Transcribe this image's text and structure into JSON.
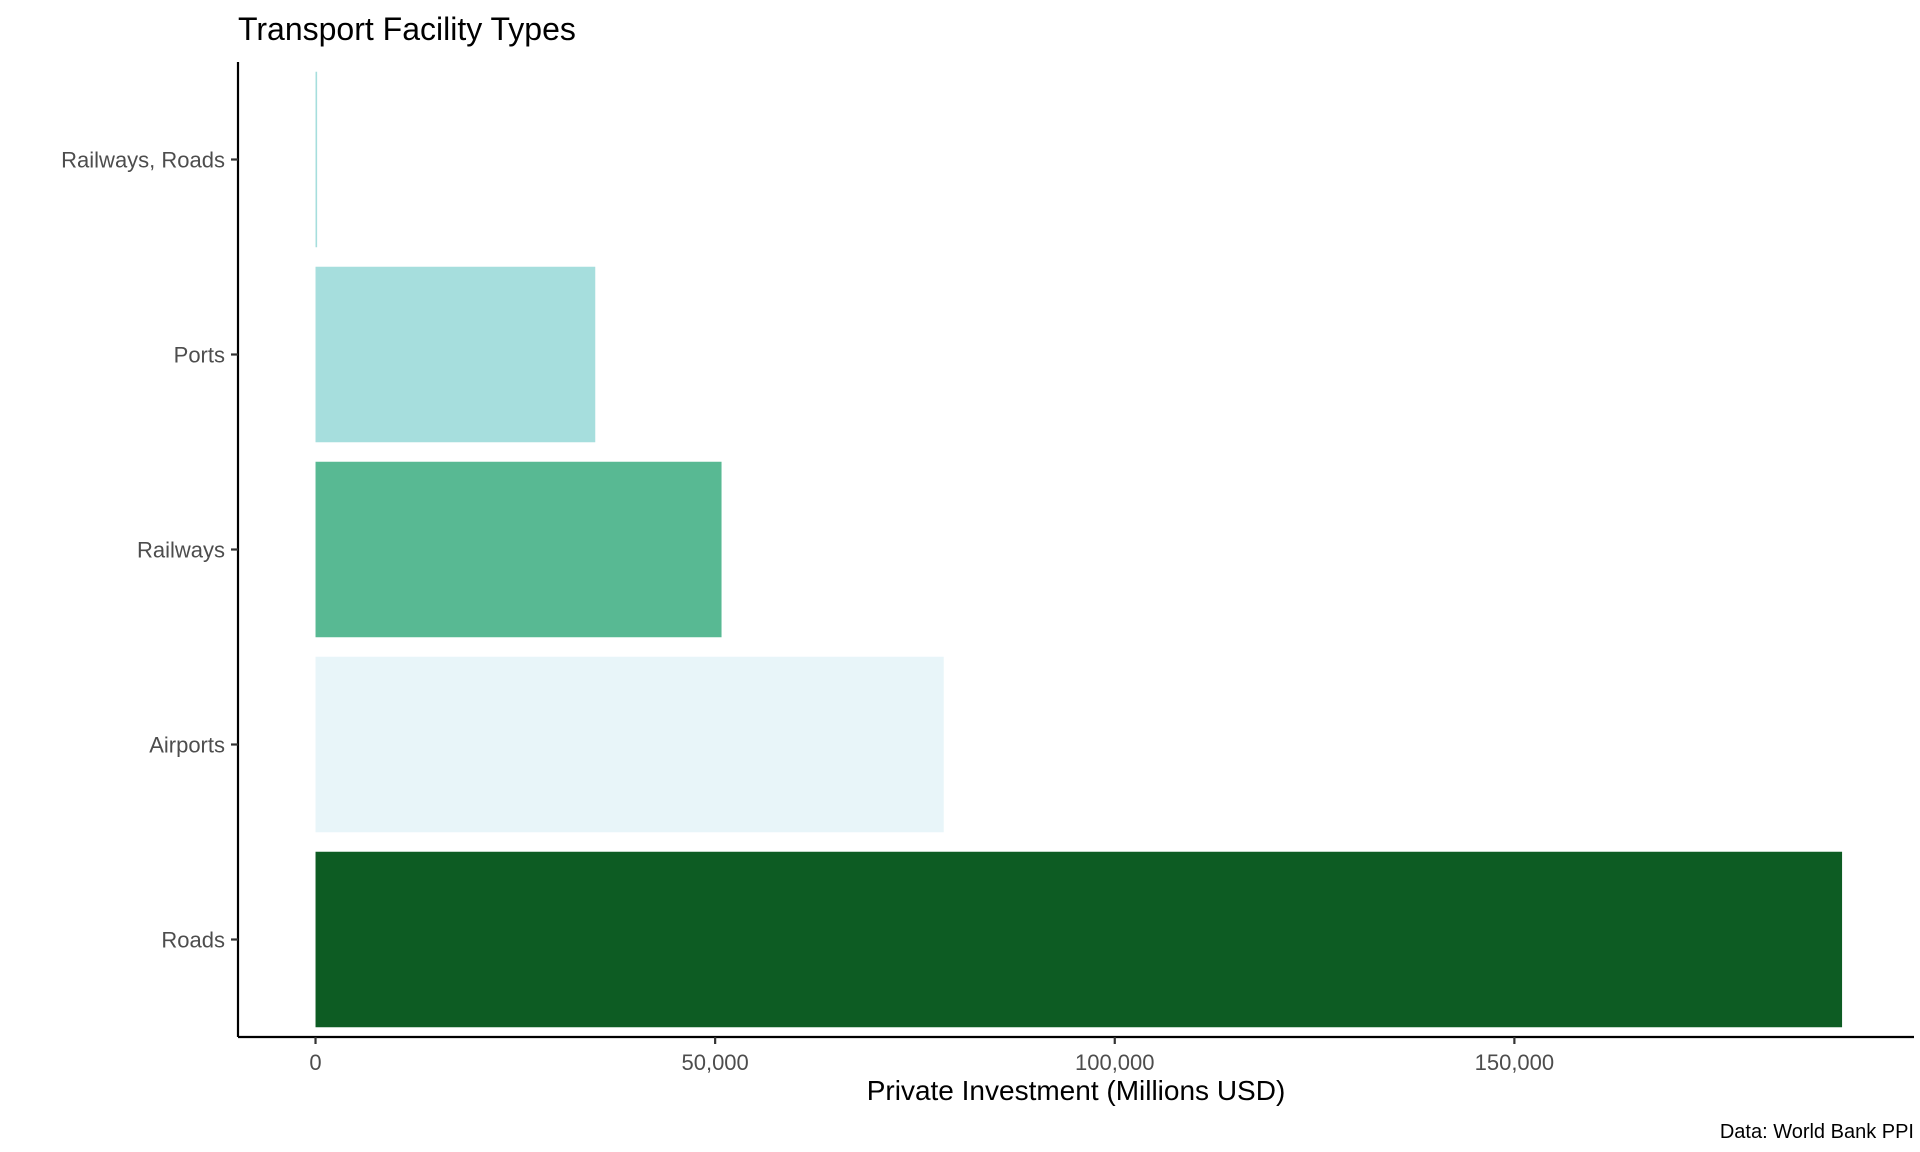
{
  "chart_data": {
    "type": "bar",
    "orientation": "horizontal",
    "title": "Transport Facility Types",
    "xlabel": "Private Investment (Millions USD)",
    "ylabel": "",
    "caption": "Data: World Bank PPI",
    "categories": [
      "Roads",
      "Airports",
      "Railways",
      "Ports",
      "Railways, Roads"
    ],
    "values": [
      191000,
      78600,
      50800,
      35000,
      200
    ],
    "colors": [
      "#0d5c23",
      "#e8f5f9",
      "#58b993",
      "#a6dedd",
      "#a6dedd"
    ],
    "xlim": [
      -9700,
      200000
    ],
    "xticks": [
      0,
      50000,
      100000,
      150000
    ],
    "xtick_labels": [
      "0",
      "50,000",
      "100,000",
      "150,000"
    ],
    "grid": false,
    "legend": "none"
  }
}
